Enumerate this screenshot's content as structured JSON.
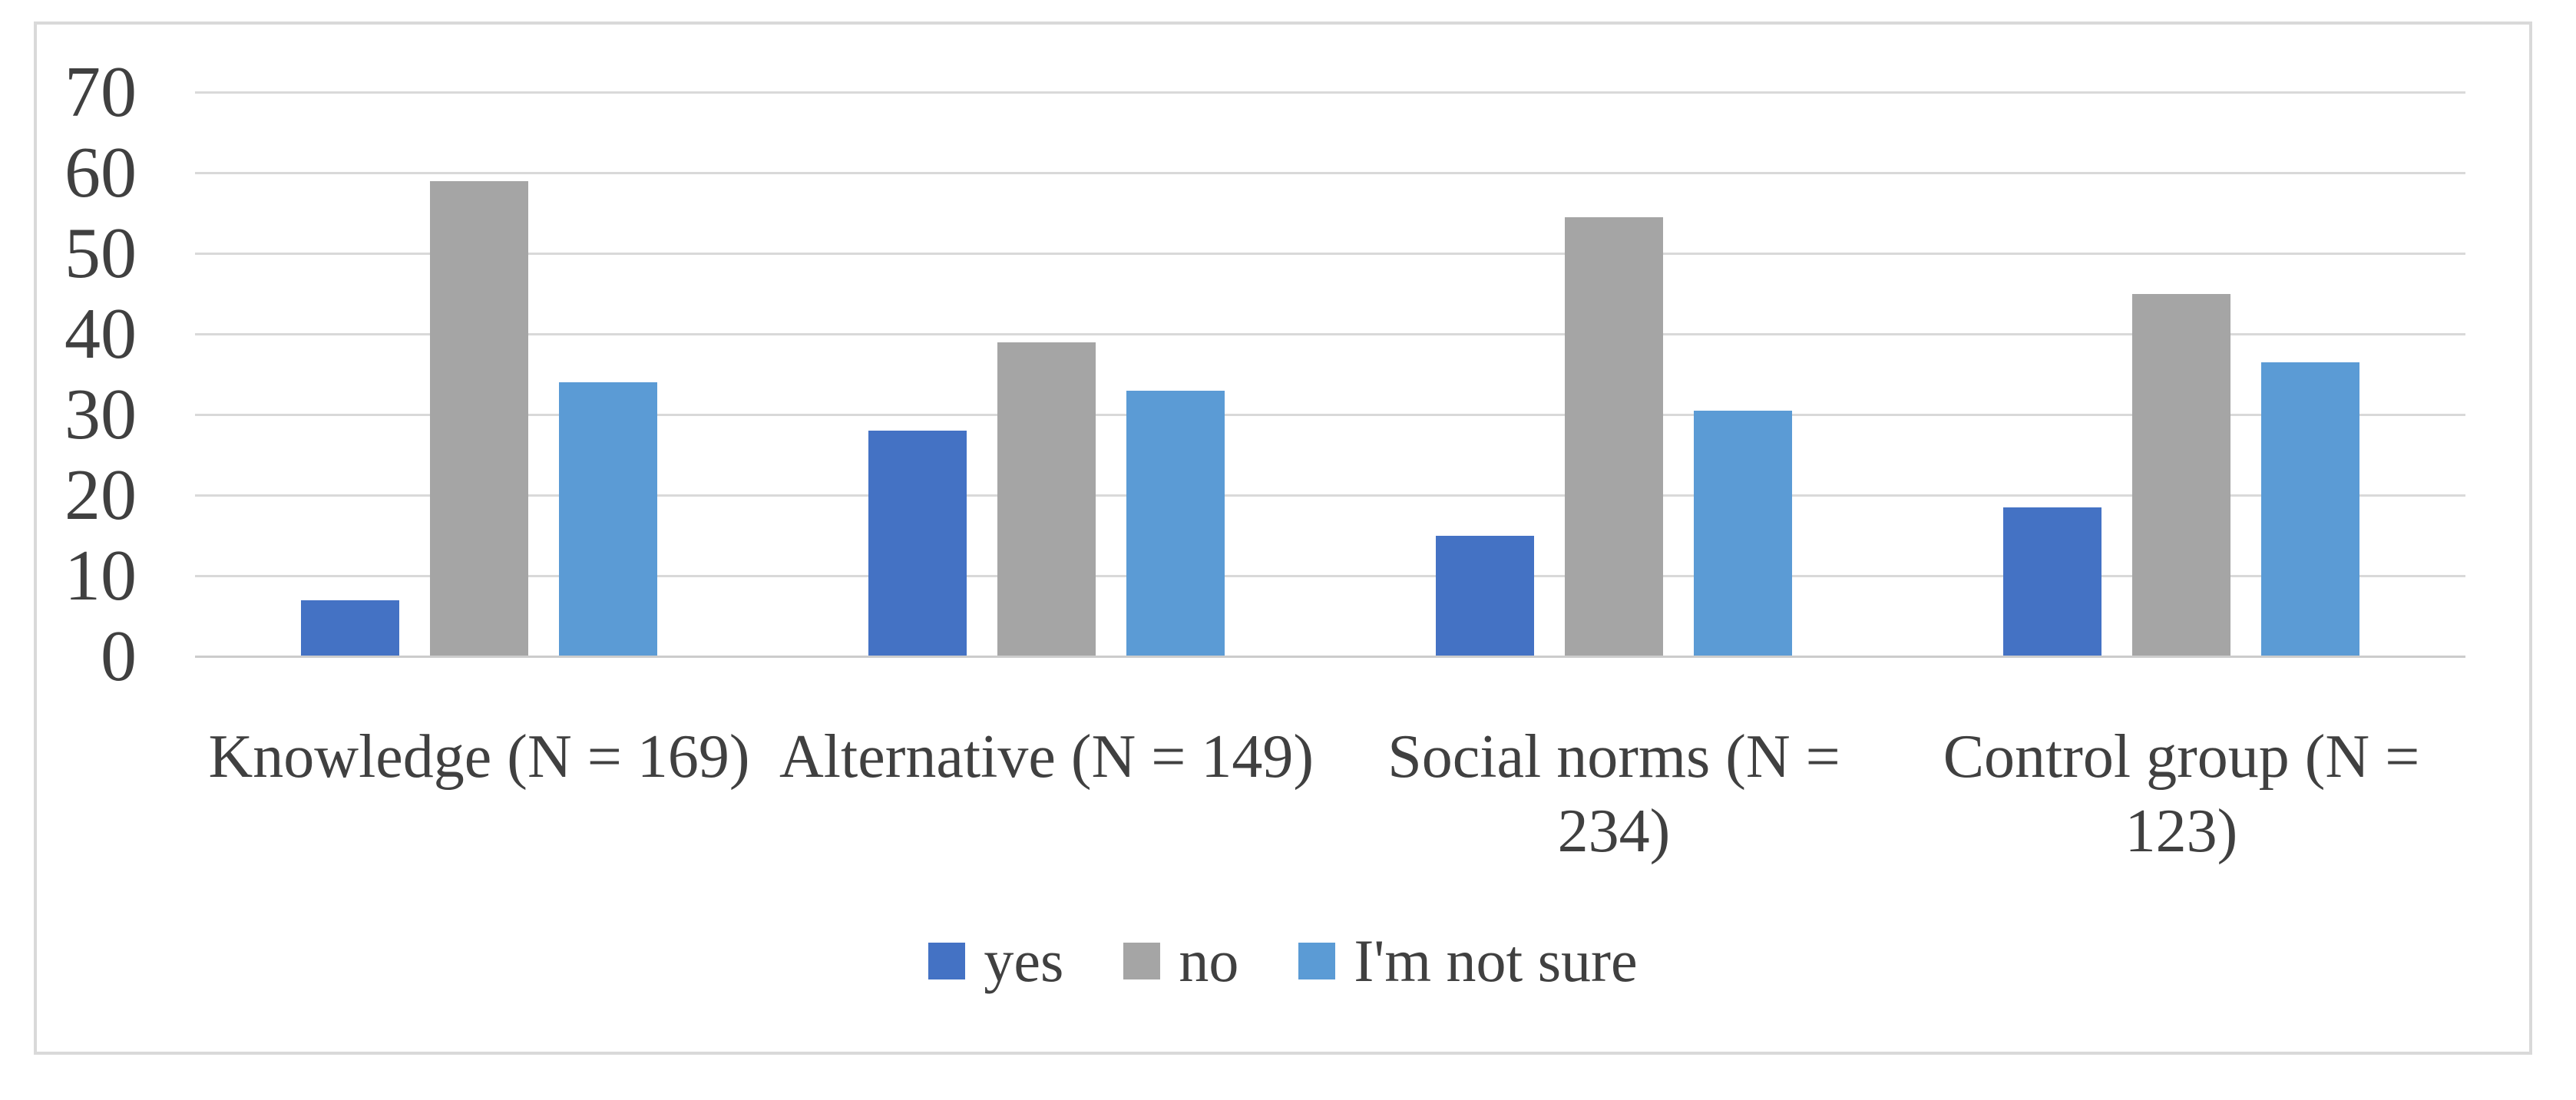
{
  "chart_data": {
    "type": "bar",
    "title": "",
    "xlabel": "",
    "ylabel": "",
    "categories": [
      "Knowledge (N = 169)",
      "Alternative (N = 149)",
      "Social norms (N = 234)",
      "Control group (N = 123)"
    ],
    "category_label_lines": [
      [
        "Knowledge (N = 169)"
      ],
      [
        "Alternative (N = 149)"
      ],
      [
        "Social norms (N =",
        "234)"
      ],
      [
        "Control group (N =",
        "123)"
      ]
    ],
    "series": [
      {
        "name": "yes",
        "color": "#4472C4",
        "values": [
          7,
          28,
          15,
          18.5
        ]
      },
      {
        "name": "no",
        "color": "#A5A5A5",
        "values": [
          59,
          39,
          54.5,
          45
        ]
      },
      {
        "name": "I'm not sure",
        "color": "#5B9BD5",
        "values": [
          34,
          33,
          30.5,
          36.5
        ]
      }
    ],
    "y_axis": {
      "min": 0,
      "max": 70,
      "step": 10,
      "ticks": [
        0,
        10,
        20,
        30,
        40,
        50,
        60,
        70
      ]
    },
    "grid": true,
    "legend_position": "bottom"
  },
  "colors": {
    "background": "#FFFFFF",
    "chart_border": "#D9D9D9",
    "gridline": "#D9D9D9",
    "axis_line": "#CCCCCC",
    "text": "#404040"
  }
}
